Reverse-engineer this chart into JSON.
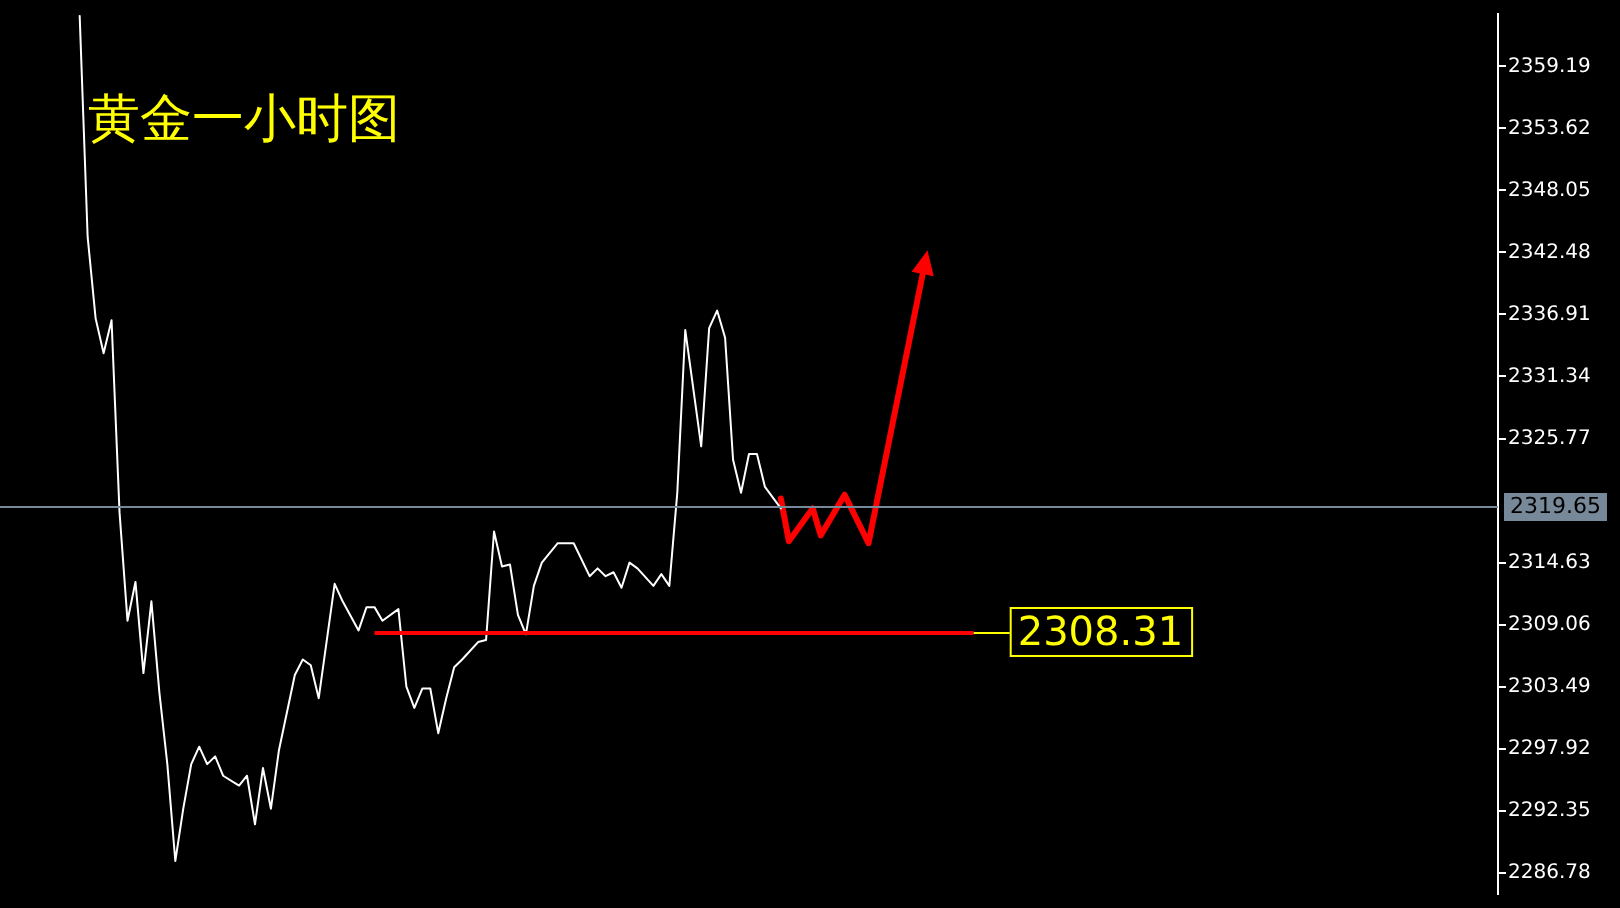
{
  "chart_data": {
    "type": "line",
    "title": "黄金一小时图",
    "categories": [
      null,
      null,
      null,
      null,
      null,
      null,
      null,
      null,
      null,
      null,
      null,
      null,
      null,
      null,
      null,
      null,
      null,
      null,
      null,
      null,
      null,
      null,
      null,
      null,
      null,
      null,
      null,
      null,
      null,
      null,
      null,
      null,
      null,
      null,
      null,
      null,
      null,
      null,
      null,
      null,
      null,
      null,
      null,
      null,
      null,
      null,
      null,
      null,
      null,
      null,
      null,
      null,
      null,
      null,
      null,
      null,
      null,
      null,
      null,
      null,
      null,
      null,
      null,
      null,
      null,
      null,
      null,
      null,
      null,
      null,
      null,
      null,
      null,
      null,
      null,
      null,
      null,
      null,
      null,
      null,
      null,
      null,
      null,
      null,
      null,
      null,
      null,
      null,
      null,
      null,
      null,
      null,
      null,
      null,
      null,
      null,
      null,
      null,
      null,
      null,
      null,
      null,
      null,
      null,
      null,
      null,
      null,
      null,
      null,
      null,
      null,
      null,
      null,
      null,
      null,
      null,
      null,
      null,
      null,
      null,
      null,
      null,
      null,
      null,
      null,
      null,
      null,
      null,
      null,
      null,
      null,
      null,
      null,
      null,
      null,
      null,
      null,
      null,
      null,
      null,
      null,
      null,
      null,
      null,
      null,
      null,
      null,
      null,
      null,
      null,
      null,
      null,
      null,
      null,
      null,
      null,
      null,
      null,
      null,
      null,
      null,
      null,
      null,
      null,
      null,
      null,
      null,
      null,
      null,
      null,
      null,
      null,
      null,
      null,
      null,
      null,
      null,
      null,
      null,
      null,
      null,
      null,
      null,
      null,
      null,
      null,
      null,
      null,
      null
    ],
    "series": [
      {
        "color": "#ffffff",
        "values": [
          null,
          null,
          null,
          null,
          null,
          null,
          null,
          null,
          null,
          null,
          2363.72,
          2343.87,
          2336.56,
          2333.43,
          2336.39,
          2319.16,
          2309.41,
          2312.89,
          2304.71,
          2311.15,
          2302.97,
          2296.53,
          2287.83,
          2292.53,
          2296.53,
          2298.1,
          2296.53,
          2297.23,
          2295.49,
          null,
          2294.61,
          2295.49,
          2291.13,
          2296.18,
          2292.53,
          2297.75,
          null,
          2304.54,
          2305.93,
          2305.41,
          2302.45,
          null,
          2312.72,
          2311.15,
          null,
          2308.54,
          2310.63,
          2310.63,
          2309.41,
          null,
          2310.45,
          2303.49,
          2301.58,
          2303.32,
          2303.32,
          2299.31,
          2302.45,
          2305.23,
          2305.93,
          null,
          2307.49,
          2307.67,
          2317.42,
          2314.28,
          2314.46,
          2309.93,
          2308.19,
          2312.54,
          2314.63,
          null,
          2316.37,
          null,
          2316.37,
          null,
          2313.41,
          2314.11,
          2313.41,
          2313.76,
          2312.37,
          2314.63,
          2314.11,
          null,
          2312.54,
          2313.59,
          2312.54,
          2320.9,
          2335.52,
          2330.3,
          2325.07,
          2335.69,
          2337.26,
          2334.82,
          2323.86,
          2320.9,
          2324.38,
          2324.38,
          2321.42,
          null,
          2319.5,
          null,
          null,
          null,
          null,
          null,
          null,
          null,
          null,
          null,
          null,
          null,
          null,
          null,
          null,
          null,
          null,
          null,
          null,
          null,
          null,
          null,
          null,
          null,
          null,
          null,
          null,
          null,
          null,
          null,
          null,
          null,
          null,
          null,
          null,
          null,
          null,
          null,
          null,
          null,
          null,
          null,
          null,
          null,
          null,
          null,
          null,
          null,
          null,
          null,
          null,
          null,
          null,
          null,
          null,
          null,
          null,
          null,
          null,
          null,
          null,
          null,
          null,
          null,
          null,
          null,
          null,
          null,
          null,
          null,
          null,
          null,
          null,
          null,
          null,
          null,
          null,
          null,
          null,
          null,
          null,
          null,
          null,
          null,
          null,
          null,
          null,
          null,
          null,
          null,
          null
        ]
      },
      {
        "color": "#ff0000",
        "values": [
          null,
          null,
          null,
          null,
          null,
          null,
          null,
          null,
          null,
          null,
          null,
          null,
          null,
          null,
          null,
          null,
          null,
          null,
          null,
          null,
          null,
          null,
          null,
          null,
          null,
          null,
          null,
          null,
          null,
          null,
          null,
          null,
          null,
          null,
          null,
          null,
          null,
          null,
          null,
          null,
          null,
          null,
          null,
          null,
          null,
          null,
          null,
          null,
          null,
          null,
          null,
          null,
          null,
          null,
          null,
          null,
          null,
          null,
          null,
          null,
          null,
          null,
          null,
          null,
          null,
          null,
          null,
          null,
          null,
          null,
          null,
          null,
          null,
          null,
          null,
          null,
          null,
          null,
          null,
          null,
          null,
          null,
          null,
          null,
          null,
          null,
          null,
          null,
          null,
          null,
          null,
          null,
          null,
          null,
          null,
          null,
          null,
          null,
          2320.38,
          2316.55,
          null,
          null,
          2319.5,
          2317.07,
          null,
          null,
          2320.72,
          null,
          null,
          2316.37,
          null,
          null,
          null,
          null,
          null,
          null,
          2341.26,
          null,
          null,
          null,
          null,
          null,
          null,
          null,
          null,
          null,
          null,
          null,
          null,
          null,
          null,
          null,
          null,
          null,
          null,
          null,
          null,
          null,
          null,
          null,
          null,
          null,
          null,
          null,
          null,
          null,
          null,
          null,
          null,
          null,
          null,
          null,
          null,
          null,
          null,
          null,
          null,
          null,
          null,
          null,
          null,
          null,
          null,
          null,
          null,
          null,
          null,
          null,
          null,
          null,
          null,
          null,
          null,
          null,
          null,
          null,
          null,
          null,
          null,
          null,
          null,
          null,
          null,
          null,
          null,
          null,
          null,
          null,
          null
        ]
      }
    ],
    "ylim": [
      2284.87,
      2363.89
    ],
    "yticks": [
      2286.78,
      2292.35,
      2297.92,
      2303.49,
      2309.06,
      2314.63,
      2325.77,
      2331.34,
      2336.91,
      2342.48,
      2348.05,
      2353.62,
      2359.19
    ],
    "ref_lines": [
      {
        "axis": "y",
        "value": 2319.65,
        "label": "2319.65",
        "color": "#778899"
      },
      {
        "axis": "y",
        "value": 2308.31,
        "label": "2308.31",
        "color": "#ff0000"
      }
    ],
    "grid": false,
    "legend": false,
    "tick_labels": "y",
    "marker": "none",
    "line_style": "solid"
  }
}
